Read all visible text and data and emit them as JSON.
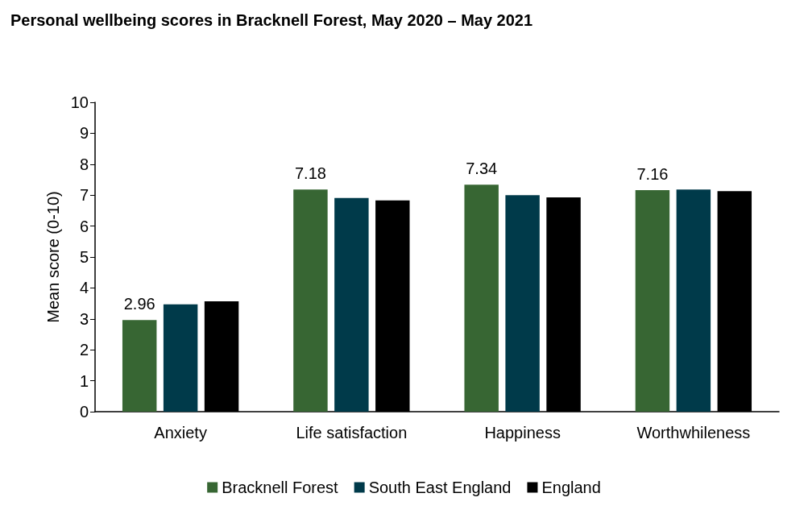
{
  "chart_data": {
    "type": "bar",
    "title": "Personal wellbeing scores in Bracknell Forest, May 2020 – May 2021",
    "ylabel": "Mean score (0-10)",
    "categories": [
      "Anxiety",
      "Life satisfaction",
      "Happiness",
      "Worthwhileness"
    ],
    "series": [
      {
        "name": "Bracknell Forest",
        "color": "#376633",
        "values": [
          2.96,
          7.18,
          7.34,
          7.16
        ],
        "value_labels": [
          "2.96",
          "7.18",
          "7.34",
          "7.16"
        ]
      },
      {
        "name": "South East England",
        "color": "#003a4a",
        "values": [
          3.47,
          6.91,
          7.0,
          7.18
        ]
      },
      {
        "name": "England",
        "color": "#000000",
        "values": [
          3.57,
          6.83,
          6.93,
          7.13
        ]
      }
    ],
    "ylim": [
      0,
      10
    ],
    "yticks": [
      0,
      1,
      2,
      3,
      4,
      5,
      6,
      7,
      8,
      9,
      10
    ],
    "grid": false,
    "legend": "bottom"
  }
}
